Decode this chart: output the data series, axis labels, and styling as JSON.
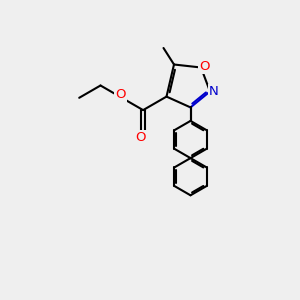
{
  "bg_color": "#efefef",
  "bond_color": "#000000",
  "o_color": "#ff0000",
  "n_color": "#0000cc",
  "line_width": 1.5,
  "figsize": [
    3.0,
    3.0
  ],
  "dpi": 100,
  "xlim": [
    0,
    10
  ],
  "ylim": [
    0,
    10
  ]
}
